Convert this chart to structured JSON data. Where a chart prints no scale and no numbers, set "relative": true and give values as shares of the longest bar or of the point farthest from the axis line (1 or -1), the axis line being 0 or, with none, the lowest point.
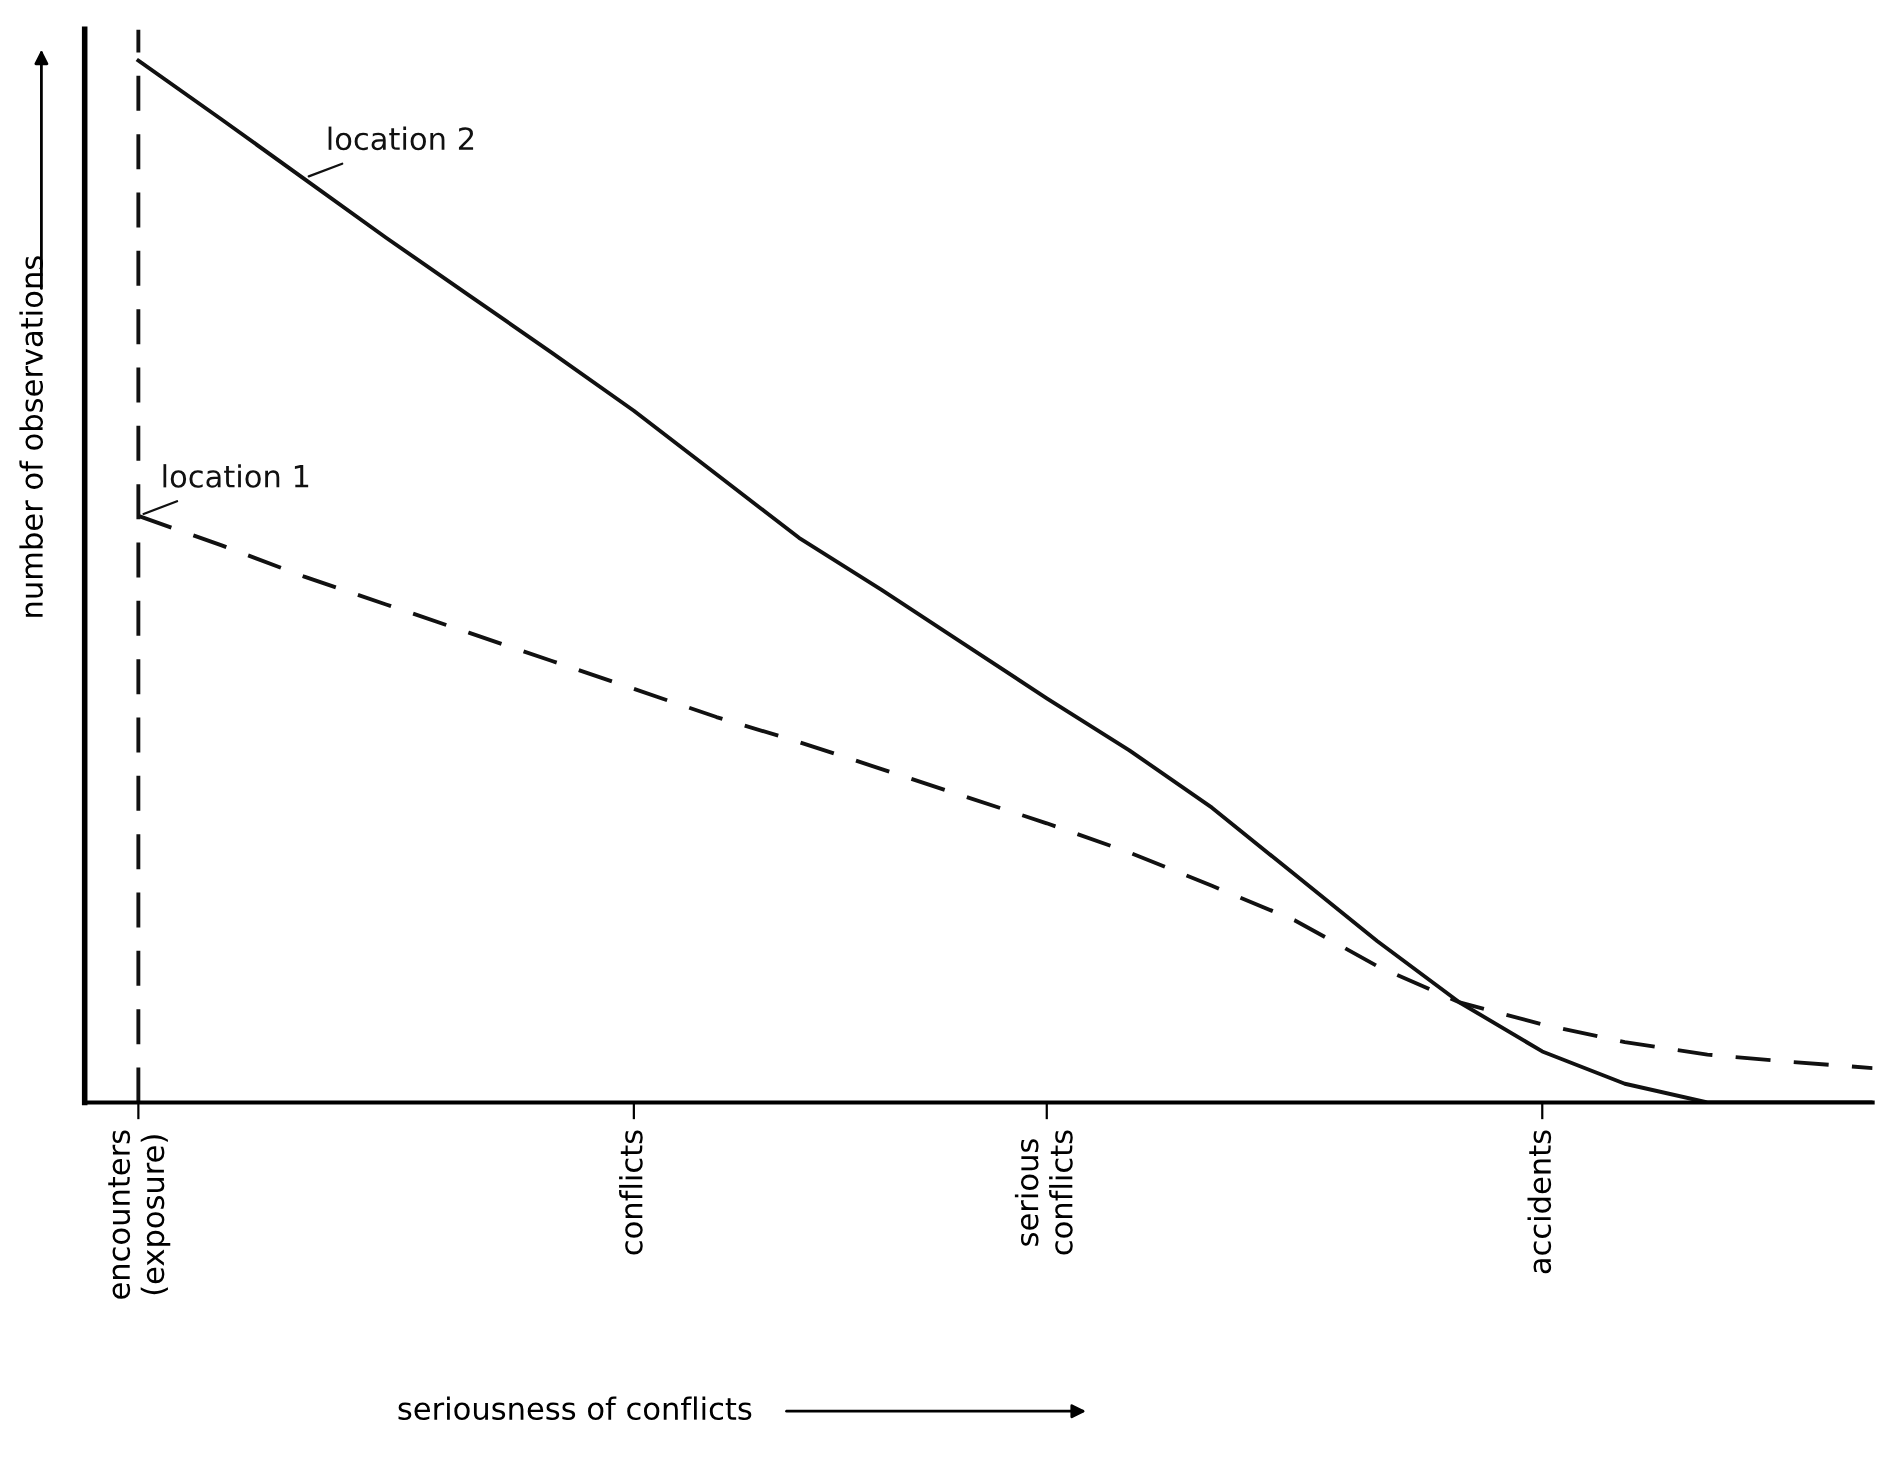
{
  "chart_data": {
    "type": "line",
    "relative": true,
    "xlabel": "seriousness of conflicts",
    "ylabel": "number of observations",
    "categories": [
      "encounters\n(exposure)",
      null,
      null,
      null,
      null,
      null,
      "conflicts",
      null,
      null,
      null,
      null,
      "serious\nconflicts",
      null,
      null,
      null,
      null,
      null,
      "accidents",
      null,
      null,
      null,
      null
    ],
    "series": [
      {
        "name": "location 2",
        "color": "#111111",
        "line_style": "solid",
        "values": [
          1.0,
          0.944,
          0.887,
          0.83,
          0.775,
          0.72,
          0.664,
          0.603,
          0.542,
          0.492,
          0.44,
          0.388,
          0.338,
          0.283,
          0.219,
          0.155,
          0.096,
          0.049,
          0.018,
          0,
          0,
          0
        ]
      },
      {
        "name": "location 1",
        "color": "#111111",
        "line_style": "dashed",
        "values": [
          0.563,
          0.535,
          0.505,
          0.478,
          0.451,
          0.424,
          0.397,
          0.37,
          0.346,
          0.32,
          0.294,
          0.268,
          0.24,
          0.208,
          0.175,
          0.131,
          0.096,
          0.075,
          0.058,
          0.046,
          0.039,
          0.033
        ]
      }
    ],
    "ref_lines": [
      {
        "axis": "x",
        "value": "encounters\n(exposure)",
        "line_style": "dashed",
        "color": "#111111"
      }
    ],
    "grid": false,
    "legend": false,
    "marker": "none"
  }
}
